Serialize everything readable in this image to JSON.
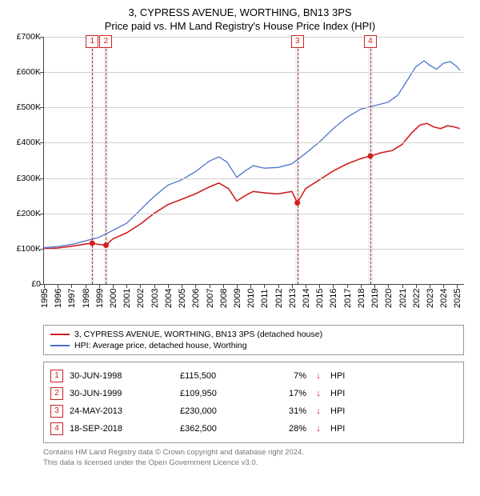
{
  "title": {
    "line1": "3, CYPRESS AVENUE, WORTHING, BN13 3PS",
    "line2": "Price paid vs. HM Land Registry's House Price Index (HPI)"
  },
  "chart": {
    "type": "line",
    "x": {
      "min": 1995,
      "max": 2025.5,
      "ticks": [
        1995,
        1996,
        1997,
        1998,
        1999,
        2000,
        2001,
        2002,
        2003,
        2004,
        2005,
        2006,
        2007,
        2008,
        2009,
        2010,
        2011,
        2012,
        2013,
        2014,
        2015,
        2016,
        2017,
        2018,
        2019,
        2020,
        2021,
        2022,
        2023,
        2024,
        2025
      ]
    },
    "y": {
      "min": 0,
      "max": 700000,
      "ticks": [
        0,
        100000,
        200000,
        300000,
        400000,
        500000,
        600000,
        700000
      ],
      "labels": [
        "£0",
        "£100K",
        "£200K",
        "£300K",
        "£400K",
        "£500K",
        "£600K",
        "£700K"
      ]
    },
    "grid_color": "#d0d0d0",
    "axis_color": "#444444",
    "background_color": "#ffffff",
    "band_color": "#eaf0f7",
    "event_line_color": "#d02020",
    "series": [
      {
        "name": "price_paid",
        "label": "3, CYPRESS AVENUE, WORTHING, BN13 3PS (detached house)",
        "color": "#d02020",
        "width": 1.6,
        "points": [
          [
            1995.0,
            100000
          ],
          [
            1996.0,
            102000
          ],
          [
            1997.0,
            107000
          ],
          [
            1998.0,
            113000
          ],
          [
            1998.5,
            115500
          ],
          [
            1999.0,
            112000
          ],
          [
            1999.5,
            109950
          ],
          [
            2000.0,
            128000
          ],
          [
            2001.0,
            145000
          ],
          [
            2002.0,
            170000
          ],
          [
            2003.0,
            200000
          ],
          [
            2004.0,
            225000
          ],
          [
            2005.0,
            240000
          ],
          [
            2006.0,
            255000
          ],
          [
            2007.0,
            275000
          ],
          [
            2007.7,
            286000
          ],
          [
            2008.4,
            270000
          ],
          [
            2009.0,
            235000
          ],
          [
            2009.6,
            250000
          ],
          [
            2010.2,
            262000
          ],
          [
            2011.0,
            258000
          ],
          [
            2012.0,
            255000
          ],
          [
            2013.0,
            262000
          ],
          [
            2013.4,
            230000
          ],
          [
            2014.0,
            270000
          ],
          [
            2015.0,
            295000
          ],
          [
            2016.0,
            320000
          ],
          [
            2017.0,
            340000
          ],
          [
            2018.0,
            355000
          ],
          [
            2018.7,
            362500
          ],
          [
            2019.5,
            372000
          ],
          [
            2020.3,
            378000
          ],
          [
            2021.0,
            395000
          ],
          [
            2021.7,
            428000
          ],
          [
            2022.3,
            450000
          ],
          [
            2022.8,
            455000
          ],
          [
            2023.3,
            445000
          ],
          [
            2023.8,
            440000
          ],
          [
            2024.3,
            448000
          ],
          [
            2024.8,
            445000
          ],
          [
            2025.2,
            440000
          ]
        ],
        "markers": [
          {
            "x": 1998.5,
            "y": 115500
          },
          {
            "x": 1999.5,
            "y": 109950
          },
          {
            "x": 2013.4,
            "y": 230000
          },
          {
            "x": 2018.7,
            "y": 362500
          }
        ]
      },
      {
        "name": "hpi",
        "label": "HPI: Average price, detached house, Worthing",
        "color": "#4a74c9",
        "width": 1.3,
        "points": [
          [
            1995.0,
            103000
          ],
          [
            1996.0,
            106000
          ],
          [
            1997.0,
            112000
          ],
          [
            1998.0,
            122000
          ],
          [
            1999.0,
            132000
          ],
          [
            2000.0,
            152000
          ],
          [
            2001.0,
            172000
          ],
          [
            2002.0,
            210000
          ],
          [
            2003.0,
            248000
          ],
          [
            2004.0,
            280000
          ],
          [
            2005.0,
            295000
          ],
          [
            2006.0,
            318000
          ],
          [
            2007.0,
            348000
          ],
          [
            2007.7,
            360000
          ],
          [
            2008.3,
            345000
          ],
          [
            2009.0,
            302000
          ],
          [
            2009.6,
            320000
          ],
          [
            2010.2,
            335000
          ],
          [
            2011.0,
            328000
          ],
          [
            2012.0,
            330000
          ],
          [
            2013.0,
            340000
          ],
          [
            2014.0,
            370000
          ],
          [
            2015.0,
            402000
          ],
          [
            2016.0,
            440000
          ],
          [
            2017.0,
            472000
          ],
          [
            2018.0,
            495000
          ],
          [
            2019.0,
            505000
          ],
          [
            2020.0,
            515000
          ],
          [
            2020.7,
            535000
          ],
          [
            2021.3,
            572000
          ],
          [
            2022.0,
            615000
          ],
          [
            2022.6,
            632000
          ],
          [
            2023.0,
            620000
          ],
          [
            2023.5,
            608000
          ],
          [
            2024.0,
            625000
          ],
          [
            2024.5,
            630000
          ],
          [
            2025.0,
            615000
          ],
          [
            2025.2,
            605000
          ]
        ]
      }
    ],
    "events": [
      {
        "n": "1",
        "x": 1998.5,
        "band": [
          1998.35,
          1998.65
        ]
      },
      {
        "n": "2",
        "x": 1999.5,
        "band": [
          1999.35,
          1999.65
        ]
      },
      {
        "n": "3",
        "x": 2013.4,
        "band": [
          2013.25,
          2013.55
        ]
      },
      {
        "n": "4",
        "x": 2018.7,
        "band": [
          2018.55,
          2018.85
        ]
      }
    ]
  },
  "legend": {
    "items": [
      {
        "color": "#d02020",
        "label": "3, CYPRESS AVENUE, WORTHING, BN13 3PS (detached house)"
      },
      {
        "color": "#4a74c9",
        "label": "HPI: Average price, detached house, Worthing"
      }
    ]
  },
  "events_table": {
    "rows": [
      {
        "n": "1",
        "date": "30-JUN-1998",
        "price": "£115,500",
        "delta": "7%",
        "arrow": "↓",
        "ref": "HPI"
      },
      {
        "n": "2",
        "date": "30-JUN-1999",
        "price": "£109,950",
        "delta": "17%",
        "arrow": "↓",
        "ref": "HPI"
      },
      {
        "n": "3",
        "date": "24-MAY-2013",
        "price": "£230,000",
        "delta": "31%",
        "arrow": "↓",
        "ref": "HPI"
      },
      {
        "n": "4",
        "date": "18-SEP-2018",
        "price": "£362,500",
        "delta": "28%",
        "arrow": "↓",
        "ref": "HPI"
      }
    ]
  },
  "footer": {
    "line1": "Contains HM Land Registry data © Crown copyright and database right 2024.",
    "line2": "This data is licensed under the Open Government Licence v3.0."
  }
}
